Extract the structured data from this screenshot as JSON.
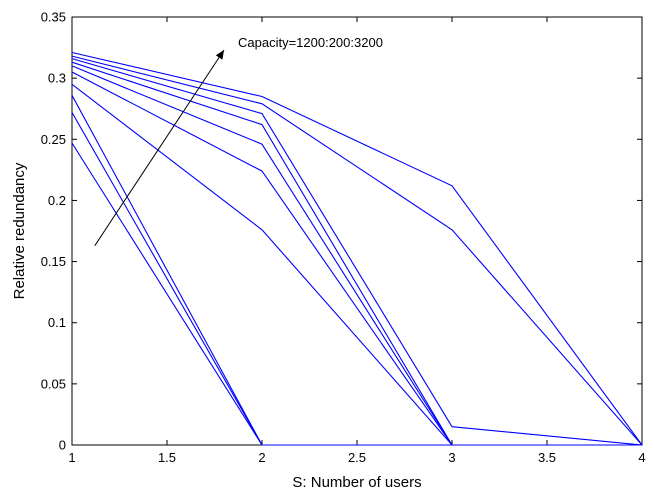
{
  "chart_data": {
    "type": "line",
    "xlabel": "S: Number of users",
    "ylabel": "Relative redundancy",
    "xlim": [
      1,
      4
    ],
    "ylim": [
      0,
      0.35
    ],
    "xticks": [
      "1",
      "1.5",
      "2",
      "2.5",
      "3",
      "3.5",
      "4"
    ],
    "yticks": [
      "0",
      "0.05",
      "0.1",
      "0.15",
      "0.2",
      "0.25",
      "0.3",
      "0.35"
    ],
    "line_color": "#0000ff",
    "grid": false,
    "x": [
      1,
      2,
      3,
      4
    ],
    "series": [
      {
        "values": [
          0.247,
          0,
          0,
          0
        ]
      },
      {
        "values": [
          0.272,
          0,
          0,
          0
        ]
      },
      {
        "values": [
          0.286,
          0,
          0,
          0
        ]
      },
      {
        "values": [
          0.295,
          0.176,
          0,
          0
        ]
      },
      {
        "values": [
          0.305,
          0.224,
          0,
          0
        ]
      },
      {
        "values": [
          0.31,
          0.246,
          0,
          0
        ]
      },
      {
        "values": [
          0.313,
          0.262,
          0,
          0
        ]
      },
      {
        "values": [
          0.316,
          0.271,
          0.015,
          0
        ]
      },
      {
        "values": [
          0.318,
          0.279,
          0.176,
          0
        ]
      },
      {
        "values": [
          0.321,
          0.285,
          0.212,
          0
        ]
      }
    ],
    "annotation": {
      "text": "Capacity=1200:200:3200",
      "arrow_from": [
        1.12,
        0.163
      ],
      "arrow_to": [
        1.8,
        0.323
      ]
    }
  }
}
